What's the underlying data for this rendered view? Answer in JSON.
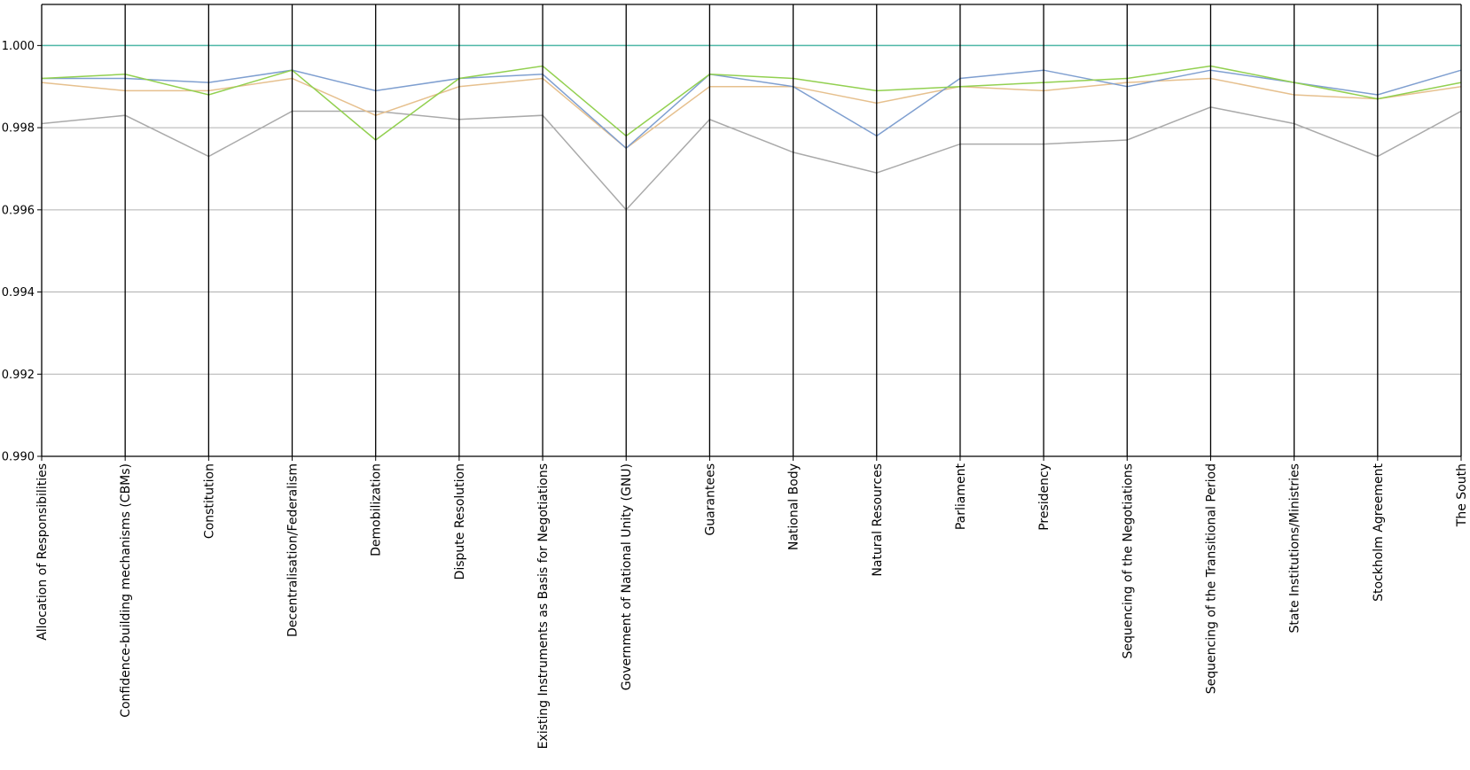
{
  "chart_data": {
    "type": "line",
    "subtype": "parallel-coordinates",
    "title": "",
    "xlabel": "",
    "ylabel": "",
    "ylim": [
      0.99,
      1.001
    ],
    "yticks": [
      "0.990",
      "0.992",
      "0.994",
      "0.996",
      "0.998",
      "1.000"
    ],
    "grid": "horizontal",
    "categories": [
      "Allocation of Responsibilities",
      "Confidence-building mechanisms (CBMs)",
      "Constitution",
      "Decentralisation/Federalism",
      "Demobilization",
      "Dispute Resolution",
      "Existing Instruments as Basis for Negotiations",
      "Government of National Unity (GNU)",
      "Guarantees",
      "National Body",
      "Natural Resources",
      "Parliament",
      "Presidency",
      "Sequencing of the Negotiations",
      "Sequencing of the Transitional Period",
      "State Institutions/Ministries",
      "Stockholm Agreement",
      "The South"
    ],
    "series": [
      {
        "color": "#4fb8a8",
        "values": [
          1.0,
          1.0,
          1.0,
          1.0,
          1.0,
          1.0,
          1.0,
          1.0,
          1.0,
          1.0,
          1.0,
          1.0,
          1.0,
          1.0,
          1.0,
          1.0,
          1.0,
          1.0
        ]
      },
      {
        "color": "#aaaaaa",
        "values": [
          0.9981,
          0.9983,
          0.9973,
          0.9984,
          0.9984,
          0.9982,
          0.9983,
          0.996,
          0.9982,
          0.9974,
          0.9969,
          0.9976,
          0.9976,
          0.9977,
          0.9985,
          0.9981,
          0.9973,
          0.9984
        ]
      },
      {
        "color": "#e6c08e",
        "values": [
          0.9991,
          0.9989,
          0.9989,
          0.9992,
          0.9983,
          0.999,
          0.9992,
          0.9975,
          0.999,
          0.999,
          0.9986,
          0.999,
          0.9989,
          0.9991,
          0.9992,
          0.9988,
          0.9987,
          0.999
        ]
      },
      {
        "color": "#7f9fd0",
        "values": [
          0.9992,
          0.9992,
          0.9991,
          0.9994,
          0.9989,
          0.9992,
          0.9993,
          0.9975,
          0.9993,
          0.999,
          0.9978,
          0.9992,
          0.9994,
          0.999,
          0.9994,
          0.9991,
          0.9988,
          0.9994
        ]
      },
      {
        "color": "#92d050",
        "values": [
          0.9992,
          0.9993,
          0.9988,
          0.9994,
          0.9977,
          0.9992,
          0.9995,
          0.9978,
          0.9993,
          0.9992,
          0.9989,
          0.999,
          0.9991,
          0.9992,
          0.9995,
          0.9991,
          0.9987,
          0.9991
        ]
      }
    ]
  }
}
